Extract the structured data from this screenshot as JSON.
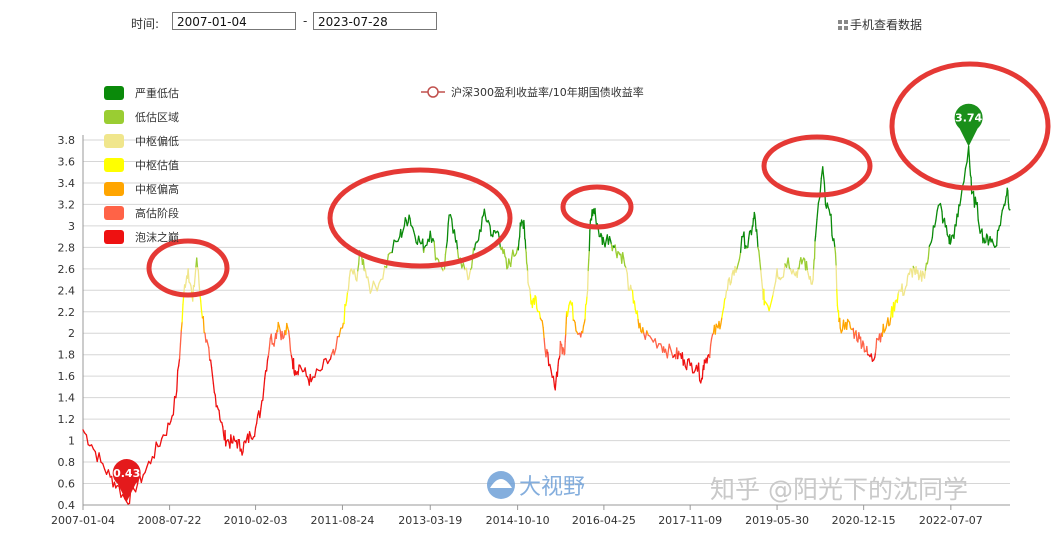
{
  "toolbar": {
    "time_label": "时间:",
    "start_date": "2007-01-04",
    "end_date": "2023-07-28",
    "separator": "-",
    "mobile_link": "手机查看数据"
  },
  "watermarks": {
    "brand": "大视野",
    "author": "知乎 @阳光下的沈同学"
  },
  "chart_data": {
    "type": "line",
    "series": [
      {
        "name": "沪深300盈利收益率/10年期国债收益率",
        "color": "#c0504d"
      }
    ],
    "x_ticks": [
      "2007-01-04",
      "2008-07-22",
      "2010-02-03",
      "2011-08-24",
      "2013-03-19",
      "2014-10-10",
      "2016-04-25",
      "2017-11-09",
      "2019-05-30",
      "2020-12-15",
      "2022-07-07"
    ],
    "y_ticks": [
      "0.4",
      "0.6",
      "0.8",
      "1",
      "1.2",
      "1.4",
      "1.6",
      "1.8",
      "2",
      "2.2",
      "2.4",
      "2.6",
      "2.8",
      "3",
      "3.2",
      "3.4",
      "3.6",
      "3.8"
    ],
    "ylim": [
      0.4,
      3.8
    ],
    "xlim": [
      "2007-01-04",
      "2023-07-28"
    ],
    "grid": true,
    "bands": [
      {
        "name": "严重低估",
        "color": "#0a8a0a"
      },
      {
        "name": "低估区域",
        "color": "#9acd32"
      },
      {
        "name": "中枢偏低",
        "color": "#f0e68c"
      },
      {
        "name": "中枢估值",
        "color": "#ffff00"
      },
      {
        "name": "中枢偏高",
        "color": "#ffa500"
      },
      {
        "name": "高估阶段",
        "color": "#ff6347"
      },
      {
        "name": "泡沫之巅",
        "color": "#ee1111"
      }
    ],
    "markers": [
      {
        "label": "0.43",
        "date": "2007-10-16",
        "value": 0.43,
        "color": "#e41a1c"
      },
      {
        "label": "3.74",
        "date": "2022-10-31",
        "value": 3.74,
        "color": "#1a8f1a"
      }
    ],
    "points": [
      [
        "2007-01-04",
        1.1
      ],
      [
        "2007-03-01",
        0.96
      ],
      [
        "2007-05-01",
        0.8
      ],
      [
        "2007-07-01",
        0.66
      ],
      [
        "2007-08-15",
        0.58
      ],
      [
        "2007-10-16",
        0.43
      ],
      [
        "2007-12-01",
        0.55
      ],
      [
        "2008-02-01",
        0.68
      ],
      [
        "2008-04-01",
        0.85
      ],
      [
        "2008-06-01",
        1.02
      ],
      [
        "2008-07-22",
        1.15
      ],
      [
        "2008-09-01",
        1.4
      ],
      [
        "2008-10-01",
        1.9
      ],
      [
        "2008-10-28",
        2.45
      ],
      [
        "2008-11-20",
        2.6
      ],
      [
        "2008-12-20",
        2.3
      ],
      [
        "2009-01-15",
        2.7
      ],
      [
        "2009-02-10",
        2.3
      ],
      [
        "2009-03-10",
        2.0
      ],
      [
        "2009-04-10",
        1.75
      ],
      [
        "2009-05-10",
        1.45
      ],
      [
        "2009-06-10",
        1.28
      ],
      [
        "2009-07-10",
        1.05
      ],
      [
        "2009-08-01",
        1.0
      ],
      [
        "2009-09-01",
        0.98
      ],
      [
        "2009-10-01",
        1.0
      ],
      [
        "2009-11-01",
        0.92
      ],
      [
        "2009-12-01",
        0.98
      ],
      [
        "2010-01-01",
        1.05
      ],
      [
        "2010-02-03",
        1.12
      ],
      [
        "2010-03-10",
        1.3
      ],
      [
        "2010-04-10",
        1.65
      ],
      [
        "2010-05-10",
        1.95
      ],
      [
        "2010-06-10",
        1.95
      ],
      [
        "2010-07-01",
        2.1
      ],
      [
        "2010-08-01",
        1.95
      ],
      [
        "2010-09-01",
        2.05
      ],
      [
        "2010-10-01",
        1.75
      ],
      [
        "2010-10-20",
        1.65
      ],
      [
        "2010-11-20",
        1.7
      ],
      [
        "2011-01-01",
        1.6
      ],
      [
        "2011-02-01",
        1.55
      ],
      [
        "2011-04-01",
        1.65
      ],
      [
        "2011-06-01",
        1.75
      ],
      [
        "2011-07-01",
        1.8
      ],
      [
        "2011-08-24",
        2.05
      ],
      [
        "2011-09-20",
        2.3
      ],
      [
        "2011-10-20",
        2.6
      ],
      [
        "2011-11-20",
        2.5
      ],
      [
        "2011-12-20",
        2.75
      ],
      [
        "2012-01-20",
        2.6
      ],
      [
        "2012-03-01",
        2.4
      ],
      [
        "2012-05-01",
        2.5
      ],
      [
        "2012-07-01",
        2.75
      ],
      [
        "2012-09-01",
        2.9
      ],
      [
        "2012-10-01",
        3.0
      ],
      [
        "2012-11-01",
        3.1
      ],
      [
        "2012-12-01",
        2.95
      ],
      [
        "2013-01-10",
        2.85
      ],
      [
        "2013-02-10",
        2.8
      ],
      [
        "2013-03-19",
        2.95
      ],
      [
        "2013-05-01",
        2.7
      ],
      [
        "2013-06-20",
        2.6
      ],
      [
        "2013-07-20",
        3.1
      ],
      [
        "2013-09-01",
        2.85
      ],
      [
        "2013-10-01",
        2.7
      ],
      [
        "2013-11-20",
        2.5
      ],
      [
        "2013-12-20",
        2.7
      ],
      [
        "2014-01-20",
        2.85
      ],
      [
        "2014-03-01",
        3.1
      ],
      [
        "2014-04-01",
        3.05
      ],
      [
        "2014-05-01",
        2.9
      ],
      [
        "2014-06-01",
        2.95
      ],
      [
        "2014-07-01",
        2.8
      ],
      [
        "2014-08-01",
        2.6
      ],
      [
        "2014-09-01",
        2.7
      ],
      [
        "2014-10-10",
        2.8
      ],
      [
        "2014-11-01",
        3.0
      ],
      [
        "2014-11-20",
        3.05
      ],
      [
        "2014-12-05",
        2.75
      ],
      [
        "2014-12-20",
        2.45
      ],
      [
        "2015-01-10",
        2.3
      ],
      [
        "2015-02-01",
        2.35
      ],
      [
        "2015-03-01",
        2.2
      ],
      [
        "2015-04-01",
        1.95
      ],
      [
        "2015-05-01",
        1.7
      ],
      [
        "2015-06-08",
        1.5
      ],
      [
        "2015-07-01",
        1.7
      ],
      [
        "2015-07-20",
        1.9
      ],
      [
        "2015-08-10",
        1.8
      ],
      [
        "2015-08-26",
        2.2
      ],
      [
        "2015-09-20",
        2.3
      ],
      [
        "2015-10-20",
        2.1
      ],
      [
        "2015-11-20",
        2.0
      ],
      [
        "2015-12-20",
        2.1
      ],
      [
        "2016-01-10",
        2.4
      ],
      [
        "2016-01-28",
        3.05
      ],
      [
        "2016-02-15",
        3.15
      ],
      [
        "2016-03-01",
        3.1
      ],
      [
        "2016-04-01",
        2.9
      ],
      [
        "2016-04-25",
        2.85
      ],
      [
        "2016-06-01",
        2.9
      ],
      [
        "2016-07-01",
        2.8
      ],
      [
        "2016-08-01",
        2.75
      ],
      [
        "2016-09-01",
        2.7
      ],
      [
        "2016-10-10",
        2.4
      ],
      [
        "2016-11-10",
        2.3
      ],
      [
        "2016-12-10",
        2.05
      ],
      [
        "2017-01-10",
        2.0
      ],
      [
        "2017-03-01",
        1.95
      ],
      [
        "2017-05-01",
        1.9
      ],
      [
        "2017-06-01",
        1.85
      ],
      [
        "2017-08-01",
        1.8
      ],
      [
        "2017-09-01",
        1.8
      ],
      [
        "2017-10-01",
        1.75
      ],
      [
        "2017-11-09",
        1.7
      ],
      [
        "2017-12-20",
        1.7
      ],
      [
        "2018-01-24",
        1.58
      ],
      [
        "2018-02-10",
        1.75
      ],
      [
        "2018-03-10",
        1.8
      ],
      [
        "2018-04-10",
        2.0
      ],
      [
        "2018-05-10",
        2.05
      ],
      [
        "2018-06-10",
        2.2
      ],
      [
        "2018-07-10",
        2.4
      ],
      [
        "2018-08-10",
        2.55
      ],
      [
        "2018-09-10",
        2.6
      ],
      [
        "2018-10-20",
        2.9
      ],
      [
        "2018-11-20",
        2.8
      ],
      [
        "2018-12-20",
        3.0
      ],
      [
        "2019-01-05",
        3.1
      ],
      [
        "2019-01-25",
        2.8
      ],
      [
        "2019-02-25",
        2.4
      ],
      [
        "2019-03-10",
        2.3
      ],
      [
        "2019-04-15",
        2.25
      ],
      [
        "2019-05-30",
        2.6
      ],
      [
        "2019-06-20",
        2.5
      ],
      [
        "2019-08-10",
        2.7
      ],
      [
        "2019-09-20",
        2.55
      ],
      [
        "2019-10-20",
        2.6
      ],
      [
        "2019-11-20",
        2.7
      ],
      [
        "2019-12-20",
        2.55
      ],
      [
        "2020-01-20",
        2.5
      ],
      [
        "2020-02-05",
        2.9
      ],
      [
        "2020-03-23",
        3.55
      ],
      [
        "2020-04-10",
        3.2
      ],
      [
        "2020-05-10",
        3.1
      ],
      [
        "2020-06-10",
        2.8
      ],
      [
        "2020-07-01",
        2.2
      ],
      [
        "2020-07-15",
        2.05
      ],
      [
        "2020-08-20",
        2.1
      ],
      [
        "2020-09-20",
        2.05
      ],
      [
        "2020-10-20",
        2.0
      ],
      [
        "2020-11-20",
        1.95
      ],
      [
        "2020-12-15",
        1.9
      ],
      [
        "2021-01-10",
        1.8
      ],
      [
        "2021-02-18",
        1.75
      ],
      [
        "2021-03-10",
        1.95
      ],
      [
        "2021-04-10",
        2.0
      ],
      [
        "2021-05-10",
        2.05
      ],
      [
        "2021-06-10",
        2.15
      ],
      [
        "2021-07-10",
        2.3
      ],
      [
        "2021-08-10",
        2.4
      ],
      [
        "2021-09-10",
        2.4
      ],
      [
        "2021-10-10",
        2.55
      ],
      [
        "2021-11-10",
        2.6
      ],
      [
        "2021-12-10",
        2.5
      ],
      [
        "2022-01-10",
        2.55
      ],
      [
        "2022-02-10",
        2.7
      ],
      [
        "2022-03-15",
        3.0
      ],
      [
        "2022-04-25",
        3.2
      ],
      [
        "2022-05-20",
        3.05
      ],
      [
        "2022-06-20",
        2.9
      ],
      [
        "2022-07-07",
        2.85
      ],
      [
        "2022-08-10",
        3.0
      ],
      [
        "2022-09-10",
        3.25
      ],
      [
        "2022-10-31",
        3.74
      ],
      [
        "2022-11-20",
        3.3
      ],
      [
        "2022-12-20",
        3.2
      ],
      [
        "2023-01-20",
        2.95
      ],
      [
        "2023-02-20",
        2.85
      ],
      [
        "2023-03-20",
        2.9
      ],
      [
        "2023-04-20",
        2.8
      ],
      [
        "2023-05-20",
        3.0
      ],
      [
        "2023-06-20",
        3.2
      ],
      [
        "2023-07-10",
        3.35
      ],
      [
        "2023-07-28",
        3.15
      ]
    ]
  }
}
